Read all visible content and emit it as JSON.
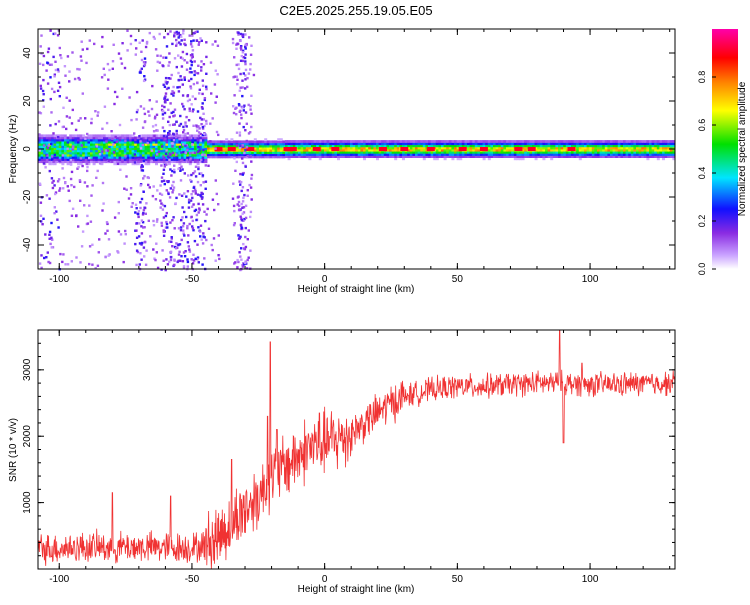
{
  "title": "C2E5.2025.255.19.05.E05",
  "colors": {
    "snr_line": "#f03232",
    "frame": "#000000"
  },
  "chart_data": [
    {
      "type": "heatmap",
      "title": "C2E5.2025.255.19.05.E05",
      "xlabel": "Height of straight line (km)",
      "ylabel": "Frequency (Hz)",
      "xlim": [
        -108,
        132
      ],
      "ylim": [
        -50,
        50
      ],
      "x_ticks": [
        -100,
        -50,
        0,
        50,
        100
      ],
      "y_ticks": [
        -40,
        -20,
        0,
        20,
        40
      ],
      "grid": false,
      "colorbar": {
        "label": "Normalized spectral amplitude",
        "range": [
          0,
          1
        ],
        "ticks": [
          "0.0",
          "0.2",
          "0.4",
          "0.6",
          "0.8"
        ],
        "colormap": "rainbow (white-purple-blue-cyan-green-yellow-orange-red-magenta)"
      },
      "ridge": {
        "description": "bright band near 0 Hz across all heights, noisy below -45 km",
        "center_freq_hz": 0,
        "half_width_hz": 4
      }
    },
    {
      "type": "line",
      "xlabel": "Height of straight line (km)",
      "ylabel": "SNR (10 * v/v)",
      "xlim": [
        -108,
        132
      ],
      "ylim": [
        0,
        3600
      ],
      "x_ticks": [
        -100,
        -50,
        0,
        50,
        100
      ],
      "y_ticks": [
        1000,
        2000,
        3000
      ],
      "grid": false,
      "series": [
        {
          "color": "#f03232",
          "envelope_x": [
            -108,
            -90,
            -70,
            -50,
            -45,
            -40,
            -35,
            -30,
            -25,
            -20,
            -15,
            -10,
            -5,
            0,
            5,
            10,
            15,
            20,
            25,
            30,
            35,
            40,
            50,
            60,
            70,
            80,
            90,
            100,
            110,
            120,
            132
          ],
          "envelope_y": [
            300,
            330,
            330,
            320,
            350,
            500,
            700,
            900,
            1100,
            1350,
            1550,
            1700,
            1850,
            1900,
            1950,
            2050,
            2200,
            2350,
            2500,
            2600,
            2650,
            2700,
            2750,
            2750,
            2780,
            2800,
            2800,
            2780,
            2780,
            2790,
            2800
          ],
          "spikes": [
            {
              "x": -20.5,
              "y": 3420
            },
            {
              "x": -21.5,
              "y": 2300
            },
            {
              "x": -35,
              "y": 1650
            },
            {
              "x": -18,
              "y": 2100
            },
            {
              "x": -2,
              "y": 2350
            },
            {
              "x": 88.5,
              "y": 3600
            },
            {
              "x": 90,
              "y": 1900
            },
            {
              "x": 97,
              "y": 3100
            },
            {
              "x": -80,
              "y": 1150
            },
            {
              "x": -58,
              "y": 1100
            }
          ]
        }
      ]
    }
  ]
}
